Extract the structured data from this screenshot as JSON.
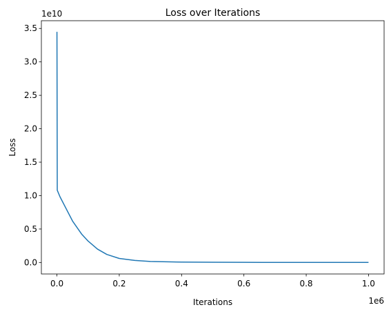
{
  "chart_data": {
    "type": "line",
    "title": "Loss over Iterations",
    "xlabel": "Iterations",
    "ylabel": "Loss",
    "x_offset_label": "1e6",
    "y_offset_label": "1e10",
    "xlim": [
      -0.05,
      1.05
    ],
    "ylim": [
      -0.172,
      3.616
    ],
    "x_scale": 1000000,
    "y_scale": 10000000000,
    "x_ticks": [
      0.0,
      0.2,
      0.4,
      0.6,
      0.8,
      1.0
    ],
    "x_tick_labels": [
      "0.0",
      "0.2",
      "0.4",
      "0.6",
      "0.8",
      "1.0"
    ],
    "y_ticks": [
      0.0,
      0.5,
      1.0,
      1.5,
      2.0,
      2.5,
      3.0,
      3.5
    ],
    "y_tick_labels": [
      "0.0",
      "0.5",
      "1.0",
      "1.5",
      "2.0",
      "2.5",
      "3.0",
      "3.5"
    ],
    "grid": false,
    "series": [
      {
        "color": "#1f77b4",
        "x": [
          0,
          0.001,
          0.01,
          0.03,
          0.05,
          0.08,
          0.1,
          0.13,
          0.16,
          0.2,
          0.25,
          0.3,
          0.4,
          0.5,
          0.6,
          0.7,
          0.8,
          0.9,
          1.0
        ],
        "y": [
          3.45,
          1.08,
          0.98,
          0.8,
          0.62,
          0.42,
          0.32,
          0.2,
          0.12,
          0.06,
          0.03,
          0.015,
          0.006,
          0.003,
          0.002,
          0.001,
          0.0007,
          0.0005,
          0.0003
        ]
      }
    ]
  }
}
